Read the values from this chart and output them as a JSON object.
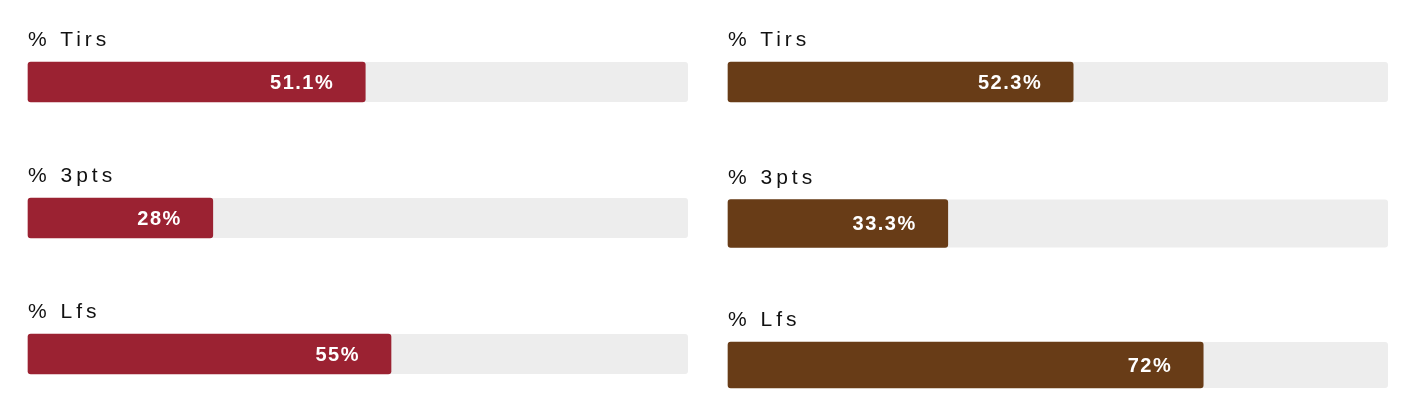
{
  "chart_data": [
    {
      "type": "bar",
      "orientation": "horizontal",
      "categories": [
        "% Tirs",
        "% 3pts",
        "% Lfs"
      ],
      "values": [
        51.1,
        28,
        55
      ],
      "color": "#9b2232",
      "xlim": [
        0,
        100
      ],
      "value_labels": [
        "51.1%",
        "28%",
        "55%"
      ],
      "tick_labels": "y"
    },
    {
      "type": "bar",
      "orientation": "horizontal",
      "categories": [
        "% Tirs",
        "% 3pts",
        "% Lfs"
      ],
      "values": [
        52.3,
        33.3,
        72
      ],
      "color": "#683c17",
      "xlim": [
        0,
        100
      ],
      "value_labels": [
        "52.3%",
        "33.3%",
        "72%"
      ],
      "tick_labels": "y"
    }
  ]
}
